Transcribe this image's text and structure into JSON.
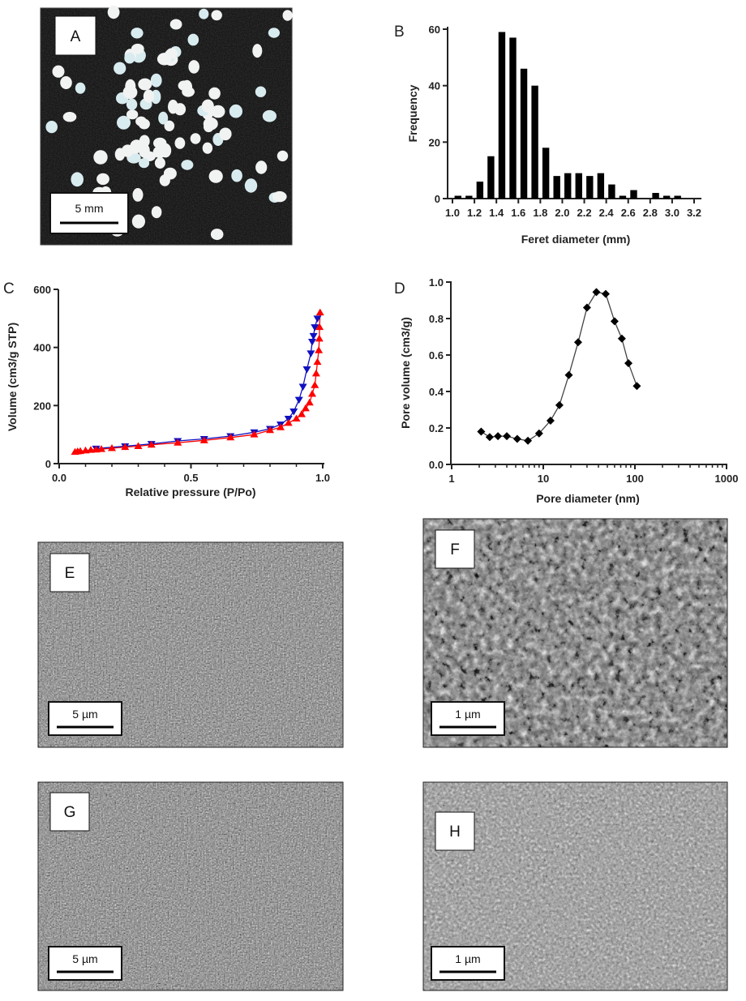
{
  "panels": {
    "A": {
      "label": "A",
      "scale": "5 mm"
    },
    "B": {
      "label": "B"
    },
    "C": {
      "label": "C"
    },
    "D": {
      "label": "D"
    },
    "E": {
      "label": "E",
      "scale": "5 µm"
    },
    "F": {
      "label": "F",
      "scale": "1 µm"
    },
    "G": {
      "label": "G",
      "scale": "5 µm"
    },
    "H": {
      "label": "H",
      "scale": "1 µm"
    }
  },
  "chart_data": [
    {
      "panel": "B",
      "type": "bar",
      "xlabel": "Feret diameter (mm)",
      "ylabel": "Frequency",
      "xlim": [
        1.0,
        3.2
      ],
      "ylim": [
        0,
        60
      ],
      "xticks": [
        "1.0",
        "1.2",
        "1.4",
        "1.6",
        "1.8",
        "2.0",
        "2.2",
        "2.4",
        "2.6",
        "2.8",
        "3.0",
        "3.2"
      ],
      "yticks": [
        "0",
        "20",
        "40",
        "60"
      ],
      "categories": [
        1.0,
        1.1,
        1.2,
        1.3,
        1.4,
        1.5,
        1.6,
        1.7,
        1.8,
        1.9,
        2.0,
        2.1,
        2.2,
        2.3,
        2.4,
        2.5,
        2.6,
        2.7,
        2.8,
        2.9,
        3.0,
        3.1
      ],
      "values": [
        1,
        1,
        6,
        15,
        59,
        57,
        46,
        40,
        18,
        8,
        9,
        9,
        8,
        9,
        5,
        1,
        3,
        0,
        2,
        1,
        1,
        0
      ],
      "color": "#000000"
    },
    {
      "panel": "C",
      "type": "line",
      "xlabel": "Relative pressure (P/Po)",
      "ylabel": "Volume (cm3/g STP)",
      "xlim": [
        0.0,
        1.0
      ],
      "ylim": [
        0,
        600
      ],
      "xticks": [
        "0.0",
        "0.5",
        "1.0"
      ],
      "yticks": [
        "0",
        "200",
        "400",
        "600"
      ],
      "series": [
        {
          "marker": "triangle-up",
          "color": "#ff0000",
          "x": [
            0.06,
            0.07,
            0.08,
            0.1,
            0.12,
            0.14,
            0.16,
            0.2,
            0.25,
            0.3,
            0.35,
            0.45,
            0.55,
            0.65,
            0.74,
            0.8,
            0.84,
            0.87,
            0.9,
            0.92,
            0.935,
            0.95,
            0.96,
            0.97,
            0.975,
            0.98,
            0.985,
            0.987,
            0.988,
            0.99
          ],
          "y": [
            40,
            42,
            43,
            45,
            47,
            48,
            50,
            53,
            57,
            60,
            65,
            72,
            80,
            90,
            100,
            115,
            125,
            140,
            155,
            170,
            190,
            210,
            240,
            270,
            310,
            350,
            390,
            430,
            470,
            520
          ]
        },
        {
          "marker": "triangle-down",
          "color": "#1010c0",
          "x": [
            0.14,
            0.25,
            0.35,
            0.45,
            0.55,
            0.65,
            0.74,
            0.8,
            0.84,
            0.87,
            0.89,
            0.91,
            0.925,
            0.94,
            0.955,
            0.96,
            0.965,
            0.97,
            0.98
          ],
          "y": [
            52,
            60,
            68,
            78,
            85,
            95,
            108,
            120,
            135,
            155,
            180,
            220,
            265,
            325,
            380,
            420,
            440,
            470,
            500
          ]
        }
      ]
    },
    {
      "panel": "D",
      "type": "line",
      "xlabel": "Pore diameter (nm)",
      "ylabel": "Pore volume (cm3/g)",
      "xscale": "log",
      "xlim": [
        1,
        1000
      ],
      "ylim": [
        0,
        1.0
      ],
      "xticks": [
        "1",
        "10",
        "100",
        "1000"
      ],
      "yticks": [
        "0.0",
        "0.2",
        "0.4",
        "0.6",
        "0.8",
        "1.0"
      ],
      "series": [
        {
          "marker": "diamond",
          "color": "#000000",
          "x": [
            2.1,
            2.6,
            3.2,
            4.0,
            5.2,
            6.8,
            9,
            12,
            15,
            19,
            24,
            30,
            38,
            48,
            60,
            72,
            85,
            105
          ],
          "y": [
            0.18,
            0.15,
            0.155,
            0.155,
            0.14,
            0.13,
            0.17,
            0.24,
            0.325,
            0.49,
            0.67,
            0.86,
            0.945,
            0.935,
            0.785,
            0.69,
            0.555,
            0.43
          ]
        }
      ]
    }
  ]
}
